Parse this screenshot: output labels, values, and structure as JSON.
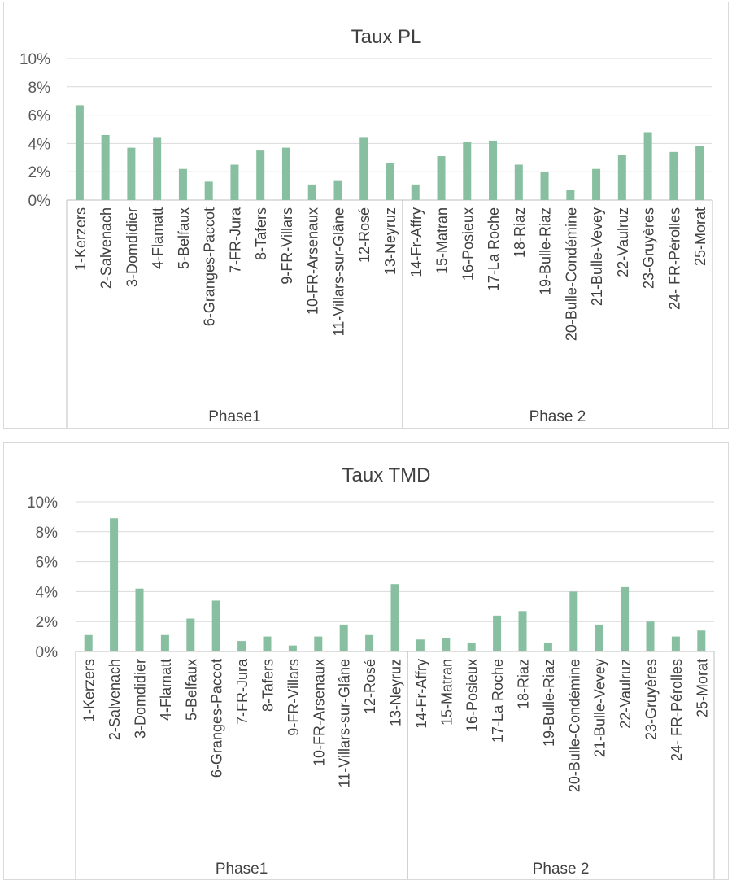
{
  "chart_data": [
    {
      "type": "bar",
      "title": "Taux PL",
      "xlabel": "",
      "ylabel": "",
      "ylim": [
        0,
        0.1
      ],
      "ytick_labels": [
        "0%",
        "2%",
        "4%",
        "6%",
        "8%",
        "10%"
      ],
      "grid": true,
      "color": "#87bfa0",
      "categories": [
        "1-Kerzers",
        "2-Salvenach",
        "3-Domdidier",
        "4-Flamatt",
        "5-Belfaux",
        "6-Granges-Paccot",
        "7-FR-Jura",
        "8-Tafers",
        "9-FR-Villars",
        "10-FR-Arsenaux",
        "11-Villars-sur-Glâne",
        "12-Rosé",
        "13-Neyruz",
        "14-Fr-Affry",
        "15-Matran",
        "16-Posieux",
        "17-La Roche",
        "18-Riaz",
        "19-Bulle-Riaz",
        "20-Bulle-Condémine",
        "21-Bulle-Vevey",
        "22-Vaulruz",
        "23-Gruyères",
        "24- FR-Pérolles",
        "25-Morat"
      ],
      "values": [
        0.067,
        0.046,
        0.037,
        0.044,
        0.022,
        0.013,
        0.025,
        0.035,
        0.037,
        0.011,
        0.014,
        0.044,
        0.026,
        0.011,
        0.031,
        0.041,
        0.042,
        0.025,
        0.02,
        0.007,
        0.022,
        0.032,
        0.048,
        0.034,
        0.038
      ],
      "groups": [
        {
          "label": "Phase1",
          "count": 13
        },
        {
          "label": "Phase 2",
          "count": 12
        }
      ]
    },
    {
      "type": "bar",
      "title": "Taux TMD",
      "xlabel": "",
      "ylabel": "",
      "ylim": [
        0,
        0.1
      ],
      "ytick_labels": [
        "0%",
        "2%",
        "4%",
        "6%",
        "8%",
        "10%"
      ],
      "grid": true,
      "color": "#87bfa0",
      "categories": [
        "1-Kerzers",
        "2-Salvenach",
        "3-Domdidier",
        "4-Flamatt",
        "5-Belfaux",
        "6-Granges-Paccot",
        "7-FR-Jura",
        "8-Tafers",
        "9-FR-Villars",
        "10-FR-Arsenaux",
        "11-Villars-sur-Glâne",
        "12-Rosé",
        "13-Neyruz",
        "14-Fr-Affry",
        "15-Matran",
        "16-Posieux",
        "17-La Roche",
        "18-Riaz",
        "19-Bulle-Riaz",
        "20-Bulle-Condémine",
        "21-Bulle-Vevey",
        "22-Vaulruz",
        "23-Gruyères",
        "24- FR-Pérolles",
        "25-Morat"
      ],
      "values": [
        0.011,
        0.089,
        0.042,
        0.011,
        0.022,
        0.034,
        0.007,
        0.01,
        0.004,
        0.01,
        0.018,
        0.011,
        0.045,
        0.008,
        0.009,
        0.006,
        0.024,
        0.027,
        0.006,
        0.04,
        0.018,
        0.043,
        0.02,
        0.01,
        0.014
      ],
      "groups": [
        {
          "label": "Phase1",
          "count": 13
        },
        {
          "label": "Phase 2",
          "count": 12
        }
      ]
    }
  ]
}
